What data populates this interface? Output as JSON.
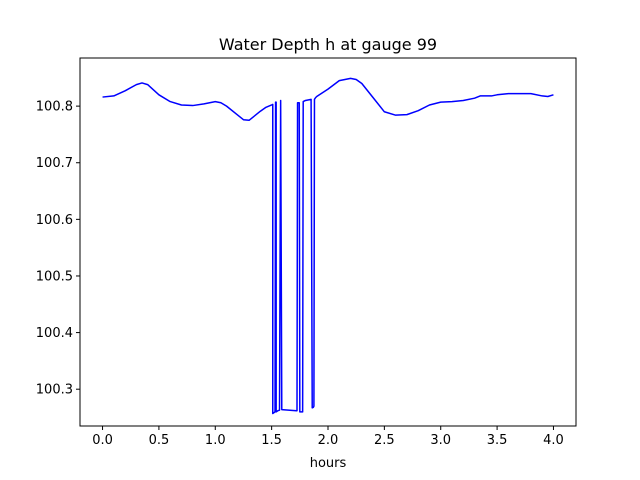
{
  "chart_data": {
    "type": "line",
    "title": "Water Depth h at gauge 99",
    "xlabel": "hours",
    "ylabel": "",
    "xlim": [
      -0.2,
      4.2
    ],
    "ylim": [
      100.235,
      100.885
    ],
    "xticks": [
      0.0,
      0.5,
      1.0,
      1.5,
      2.0,
      2.5,
      3.0,
      3.5,
      4.0
    ],
    "xtick_labels": [
      "0.0",
      "0.5",
      "1.0",
      "1.5",
      "2.0",
      "2.5",
      "3.0",
      "3.5",
      "4.0"
    ],
    "yticks": [
      100.3,
      100.4,
      100.5,
      100.6,
      100.7,
      100.8
    ],
    "ytick_labels": [
      "100.3",
      "100.4",
      "100.5",
      "100.6",
      "100.7",
      "100.8"
    ],
    "grid": false,
    "legend": "none",
    "series": [
      {
        "color": "#0000ff",
        "x": [
          0.0,
          0.1,
          0.2,
          0.3,
          0.35,
          0.4,
          0.5,
          0.6,
          0.7,
          0.8,
          0.9,
          1.0,
          1.05,
          1.1,
          1.2,
          1.25,
          1.3,
          1.4,
          1.45,
          1.5,
          1.51,
          1.51,
          1.53,
          1.535,
          1.54,
          1.54,
          1.555,
          1.57,
          1.58,
          1.58,
          1.59,
          1.72,
          1.725,
          1.73,
          1.745,
          1.75,
          1.76,
          1.775,
          1.78,
          1.8,
          1.85,
          1.86,
          1.87,
          1.875,
          1.88,
          1.89,
          1.9,
          2.0,
          2.1,
          2.2,
          2.25,
          2.3,
          2.4,
          2.5,
          2.6,
          2.7,
          2.8,
          2.9,
          3.0,
          3.1,
          3.2,
          3.3,
          3.35,
          3.4,
          3.45,
          3.5,
          3.6,
          3.7,
          3.8,
          3.9,
          3.95,
          4.0
        ],
        "y": [
          100.816,
          100.818,
          100.827,
          100.838,
          100.841,
          100.838,
          100.82,
          100.808,
          100.802,
          100.801,
          100.804,
          100.808,
          100.806,
          100.8,
          100.784,
          100.776,
          100.775,
          100.791,
          100.798,
          100.802,
          100.803,
          100.257,
          100.26,
          100.807,
          100.807,
          100.26,
          100.262,
          100.263,
          100.808,
          100.81,
          100.264,
          100.262,
          100.262,
          100.806,
          100.806,
          100.26,
          100.26,
          100.26,
          100.808,
          100.81,
          100.812,
          100.267,
          100.268,
          100.27,
          100.812,
          100.815,
          100.817,
          100.83,
          100.845,
          100.849,
          100.847,
          100.84,
          100.815,
          100.79,
          100.784,
          100.785,
          100.792,
          100.802,
          100.807,
          100.808,
          100.81,
          100.814,
          100.818,
          100.818,
          100.818,
          100.82,
          100.822,
          100.822,
          100.822,
          100.818,
          100.817,
          100.82
        ]
      }
    ]
  }
}
